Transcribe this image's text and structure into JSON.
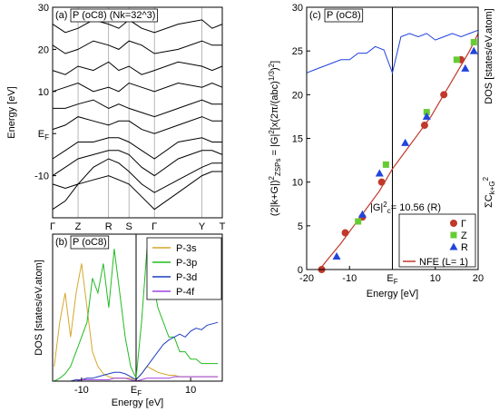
{
  "chart_data": [
    {
      "type": "line",
      "panel": "(a)",
      "title": "P (oC8) (Nk=32^3)",
      "ylabel": "Energy [eV]",
      "x": [
        0,
        0.075,
        0.15,
        0.24,
        0.33,
        0.39,
        0.45,
        0.525,
        0.6,
        0.74,
        0.88,
        0.94,
        1.0
      ],
      "xlim": [
        0,
        1
      ],
      "ylim": [
        -20,
        30
      ],
      "grid": true,
      "xticks": [
        {
          "value": 0,
          "label": "Γ"
        },
        {
          "value": 0.15,
          "label": "Z"
        },
        {
          "value": 0.33,
          "label": "R"
        },
        {
          "value": 0.45,
          "label": "S"
        },
        {
          "value": 0.6,
          "label": "Γ"
        },
        {
          "value": 0.88,
          "label": "Y"
        },
        {
          "value": 1.0,
          "label": "T"
        }
      ],
      "yticks": [
        30,
        20,
        10,
        {
          "value": 0,
          "label": "E",
          "sub": "F"
        },
        -10
      ],
      "color": "#000000",
      "bands": [
        [
          -18,
          -16,
          -12,
          -11,
          -10,
          -11,
          -12,
          -15,
          -18,
          -14,
          -10,
          -9,
          -9
        ],
        [
          -12,
          -13,
          -12,
          -8,
          -6,
          -7,
          -9,
          -12,
          -14,
          -11,
          -8,
          -7,
          -7
        ],
        [
          -10,
          -8,
          -6,
          -5,
          -4,
          -4,
          -5,
          -8,
          -10,
          -6,
          -4,
          -4,
          -5
        ],
        [
          -6,
          -4,
          -2,
          -2,
          -1,
          -1,
          -2,
          -4,
          -6,
          -2,
          -1,
          -2,
          -2
        ],
        [
          1,
          2,
          4,
          3,
          2,
          3,
          3,
          1,
          0,
          2,
          4,
          3,
          3
        ],
        [
          6,
          6,
          7,
          8,
          6,
          7,
          6,
          5,
          4,
          6,
          8,
          7,
          7
        ],
        [
          10,
          11,
          12,
          10,
          11,
          10,
          12,
          11,
          10,
          12,
          11,
          12,
          11
        ],
        [
          15,
          14,
          16,
          15,
          17,
          15,
          16,
          14,
          15,
          17,
          16,
          15,
          16
        ],
        [
          21,
          19,
          20,
          22,
          21,
          20,
          22,
          21,
          19,
          20,
          22,
          21,
          21
        ],
        [
          26,
          24,
          25,
          27,
          26,
          25,
          27,
          25,
          24,
          26,
          27,
          25,
          26
        ]
      ]
    },
    {
      "type": "line",
      "panel": "(b)",
      "title": "P (oC8)",
      "ylabel": "DOS [states/eV.atom]",
      "xlabel": "Energy [eV]",
      "xlim": [
        -15.3,
        15.8
      ],
      "ylim": [
        0,
        10
      ],
      "xticks": [
        -10,
        {
          "value": 0,
          "label": "E",
          "sub": "F"
        },
        10
      ],
      "x": [
        -15,
        -14,
        -13,
        -12,
        -11,
        -10,
        -9,
        -8,
        -7,
        -6,
        -5,
        -4,
        -3,
        -2,
        -1,
        0,
        1,
        2,
        3,
        4,
        5,
        6,
        7,
        8,
        9,
        10,
        11,
        12,
        13,
        14,
        15
      ],
      "series": [
        {
          "name": "P-3s",
          "color": "#d4a72c",
          "values": [
            1,
            4,
            6,
            3,
            6,
            8,
            5,
            2,
            1,
            0.5,
            0.3,
            0.2,
            0.2,
            0.2,
            0.2,
            0.1,
            0.5,
            1,
            0.8,
            0.6,
            0.5,
            0.4,
            0.4,
            0.3,
            0.3,
            0.3,
            0.3,
            0.3,
            0.3,
            0.3,
            0.3
          ]
        },
        {
          "name": "P-3p",
          "color": "#22bb22",
          "values": [
            0,
            0.2,
            0.5,
            1,
            2,
            3,
            4,
            7,
            6,
            8,
            5,
            9,
            6,
            3,
            1,
            0.2,
            4,
            9,
            7,
            5,
            4,
            3,
            3,
            2,
            2,
            1.5,
            1.5,
            1.2,
            1.2,
            1.2,
            1.2
          ]
        },
        {
          "name": "P-3d",
          "color": "#1f3fbf",
          "values": [
            0,
            0,
            0,
            0,
            0.1,
            0.1,
            0.2,
            0.2,
            0.3,
            0.4,
            0.5,
            0.6,
            0.6,
            0.5,
            0.3,
            0.1,
            0.5,
            1,
            1.5,
            2,
            2.5,
            2.8,
            3,
            3.2,
            3,
            3.4,
            3.6,
            3.5,
            3.8,
            3.9,
            4
          ]
        },
        {
          "name": "P-4f",
          "color": "#a040e0",
          "values": [
            0,
            0,
            0,
            0,
            0,
            0.1,
            0.1,
            0.1,
            0.1,
            0.1,
            0.1,
            0.2,
            0.2,
            0.2,
            0.1,
            0,
            0.1,
            0.2,
            0.2,
            0.2,
            0.2,
            0.2,
            0.3,
            0.3,
            0.3,
            0.3,
            0.3,
            0.3,
            0.3,
            0.3,
            0.3
          ]
        }
      ]
    },
    {
      "type": "scatter",
      "panel": "(c)",
      "title": "P (oC8)",
      "xlabel": "Energy [eV]",
      "ylabel_parts": [
        "(2|k+G|)",
        "2",
        "ZSPs",
        " = |G|",
        "2",
        "[x(2π/(abc)",
        "1/3",
        ")",
        "2",
        "]"
      ],
      "ylabel_right": "DOS [states/eV.atom]",
      "ylabel_right2_parts": [
        "ΣC",
        "k+G",
        "2"
      ],
      "annotation_parts": [
        "|G|",
        "2",
        "c",
        "= 10.56 (R)"
      ],
      "xlim": [
        -20,
        20
      ],
      "ylim": [
        0,
        30
      ],
      "y2lim": [
        0,
        40
      ],
      "xticks": [
        -20,
        -10,
        {
          "value": 0,
          "label": "E",
          "sub": "F"
        },
        10,
        20
      ],
      "yticks": [
        0,
        5,
        10,
        15,
        20,
        25,
        30
      ],
      "series": [
        {
          "name": "Γ",
          "color": "#c0392b",
          "marker": "circle",
          "x": [
            -16.5,
            -11,
            -7,
            -2.5,
            7.5,
            12,
            16
          ],
          "values": [
            0,
            4.2,
            6,
            10,
            16.5,
            20,
            24
          ]
        },
        {
          "name": "Z",
          "color": "#66cc33",
          "marker": "square",
          "x": [
            -8,
            -1.5,
            8,
            15,
            19
          ],
          "values": [
            5.5,
            12,
            18,
            24,
            26
          ]
        },
        {
          "name": "R",
          "color": "#2244dd",
          "marker": "triangle",
          "x": [
            -13,
            -7,
            -3,
            3,
            8,
            17,
            19
          ],
          "values": [
            1.5,
            6.3,
            11,
            14.5,
            17.5,
            23,
            25
          ]
        },
        {
          "name": "NFE (L= 1)",
          "color": "#c0392b",
          "marker": "line",
          "x": [
            -17,
            -15,
            -12,
            -9,
            -6,
            -3,
            0,
            3,
            6,
            9,
            12,
            15,
            18,
            20
          ],
          "values": [
            0,
            1.2,
            3,
            5,
            7,
            9,
            11.5,
            13.5,
            15.5,
            17.5,
            20,
            22.5,
            25,
            27
          ]
        }
      ],
      "dos": {
        "color": "#1f3fdf",
        "axis": "y2",
        "x": [
          -20,
          -18,
          -16,
          -14,
          -12,
          -10,
          -8,
          -6,
          -4,
          -2,
          0,
          2,
          4,
          6,
          8,
          10,
          12,
          14,
          16,
          18,
          20
        ],
        "values": [
          30,
          30.5,
          31,
          31.5,
          32,
          32,
          33,
          33,
          34,
          33.5,
          30,
          35.5,
          36,
          35.5,
          36,
          35,
          35.5,
          36,
          35.5,
          36,
          36.5
        ]
      }
    }
  ]
}
